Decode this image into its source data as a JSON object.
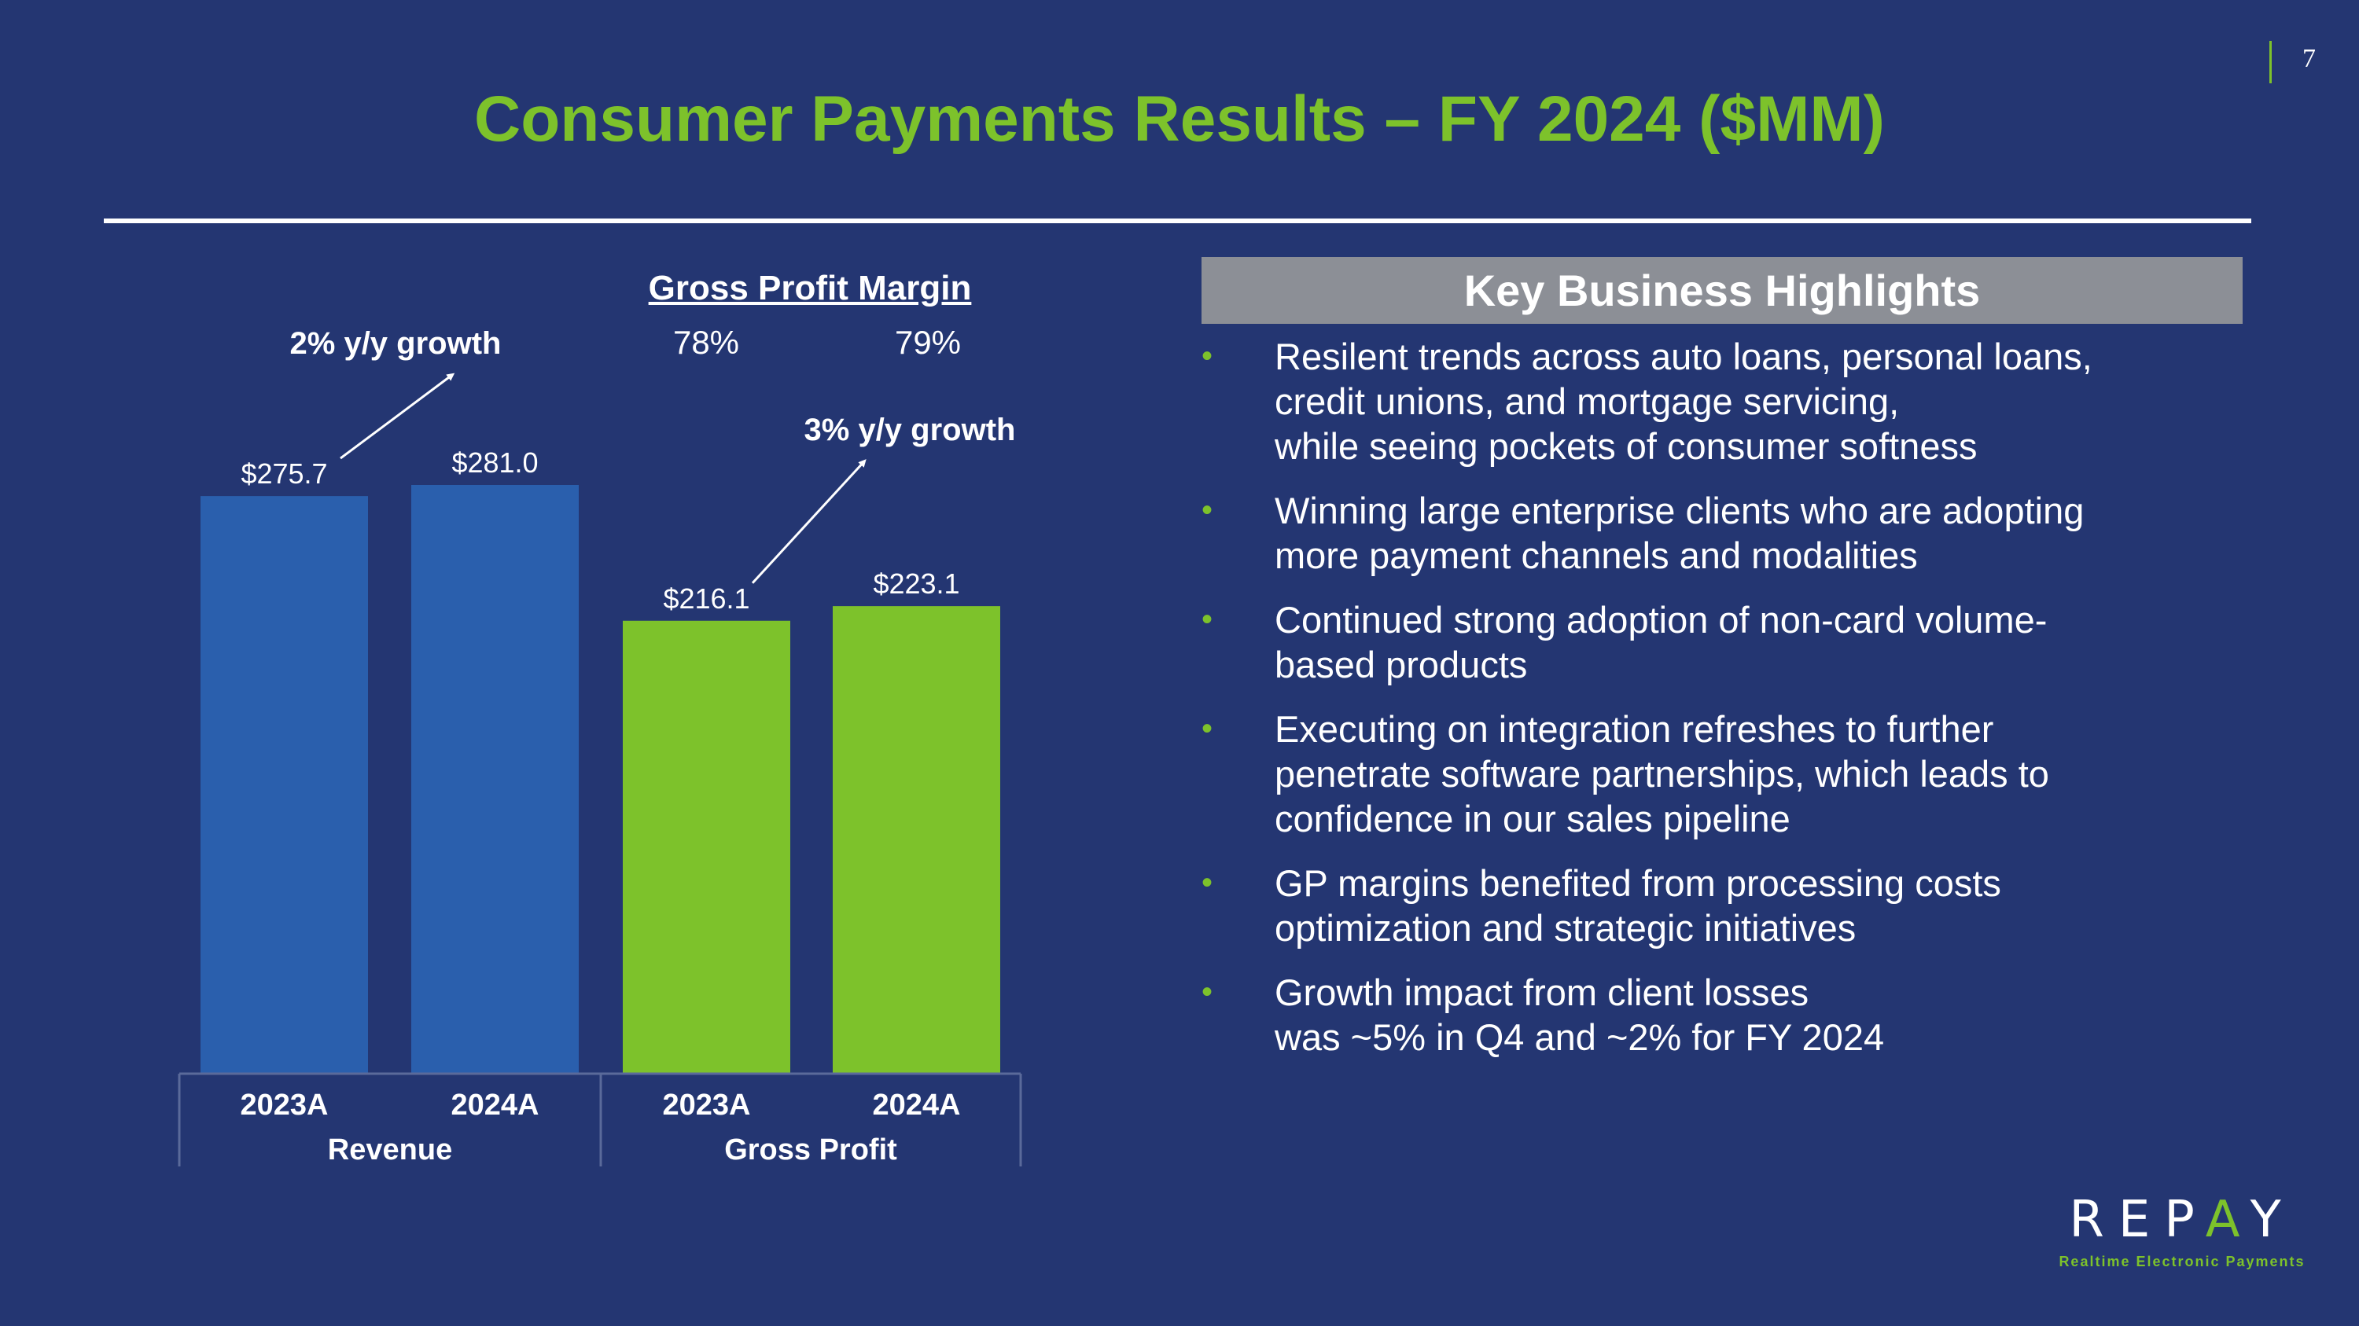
{
  "page_number": "7",
  "title": "Consumer Payments Results – FY 2024 ($MM)",
  "gross_profit_margin": {
    "label": "Gross Profit Margin",
    "values": [
      "78%",
      "79%"
    ]
  },
  "chart_data": {
    "type": "bar",
    "title": "",
    "groups": [
      {
        "name": "Revenue",
        "color": "#2a5fad",
        "growth_label": "2% y/y growth",
        "bars": [
          {
            "category": "2023A",
            "value": 275.7,
            "label": "$275.7"
          },
          {
            "category": "2024A",
            "value": 281.0,
            "label": "$281.0"
          }
        ]
      },
      {
        "name": "Gross Profit",
        "color": "#7dc22b",
        "growth_label": "3% y/y growth",
        "bars": [
          {
            "category": "2023A",
            "value": 216.1,
            "label": "$216.1"
          },
          {
            "category": "2024A",
            "value": 223.1,
            "label": "$223.1"
          }
        ]
      }
    ],
    "ylim": [
      0,
      281.0
    ],
    "xlabel": "",
    "ylabel": ""
  },
  "highlights": {
    "header": "Key Business Highlights",
    "bullet_glyph": "•",
    "items": [
      [
        "Resilent trends across auto loans, personal loans,",
        "credit unions, and mortgage servicing,",
        "while seeing pockets of consumer softness"
      ],
      [
        "Winning large enterprise clients who are adopting",
        "more payment channels and modalities"
      ],
      [
        "Continued strong adoption of non-card volume-",
        "based products"
      ],
      [
        "Executing on integration refreshes to further",
        "penetrate software partnerships, which leads to",
        "confidence in our sales pipeline"
      ],
      [
        "GP margins benefited from processing costs",
        "optimization and strategic initiatives"
      ],
      [
        "Growth impact from client losses",
        "was ~5% in Q4 and ~2% for FY 2024"
      ]
    ]
  },
  "logo": {
    "word_part1": "REP",
    "word_accent": "A",
    "word_part2": "Y",
    "tagline": "Realtime Electronic Payments"
  },
  "colors": {
    "background": "#243672",
    "accent_green": "#7dc22b",
    "revenue_blue": "#2a5fad",
    "header_gray": "#8c8f96"
  }
}
